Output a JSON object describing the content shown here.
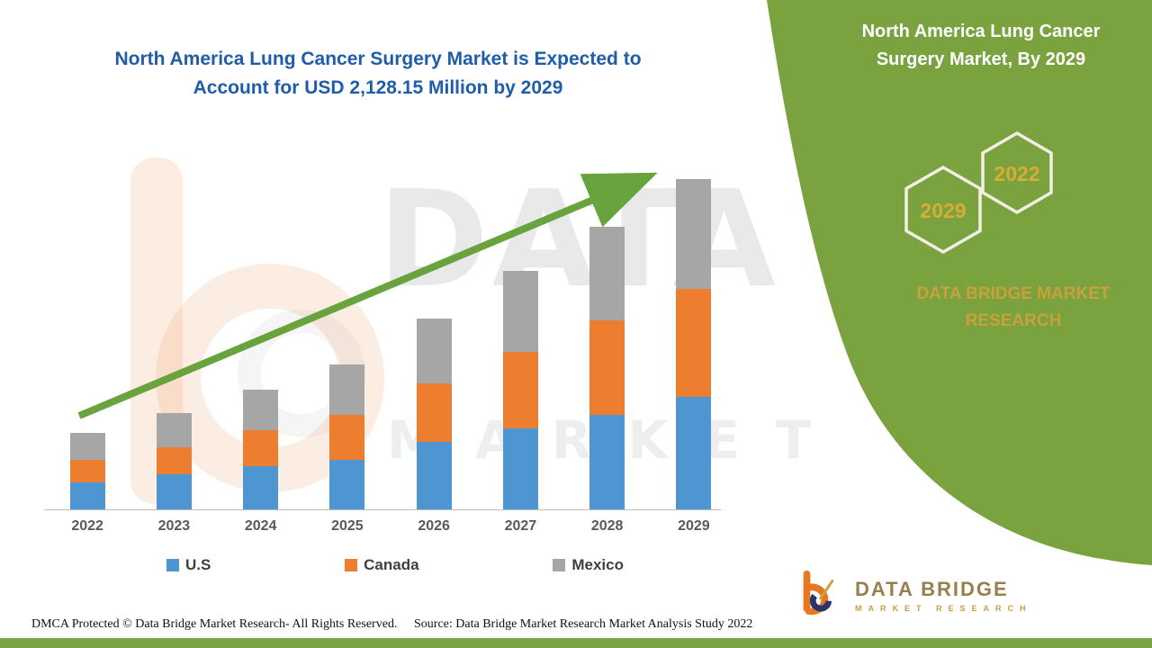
{
  "page": {
    "title_line1": "North America Lung Cancer Surgery Market is Expected to",
    "title_line2": "Account for USD 2,128.15 Million by 2029"
  },
  "side_panel": {
    "title_line1": "North America Lung Cancer",
    "title_line2": "Surgery Market, By 2029",
    "hexagon_left_label": "2029",
    "hexagon_right_label": "2022",
    "brand_line1": "DATA BRIDGE MARKET",
    "brand_line2": "RESEARCH"
  },
  "watermark": {
    "line1": "DATA BRIDGE",
    "line2": "MARKET RESEARCH"
  },
  "chart_data": {
    "type": "bar",
    "stacked": true,
    "title": "North America Lung Cancer Surgery Market is Expected to Account for USD 2,128.15 Million by 2029",
    "units": "USD Million",
    "categories": [
      "2022",
      "2023",
      "2024",
      "2025",
      "2026",
      "2027",
      "2028",
      "2029"
    ],
    "series": [
      {
        "name": "U.S",
        "color": "#4D96D2",
        "values": [
          175,
          228,
          278,
          320,
          435,
          523,
          610,
          726
        ]
      },
      {
        "name": "Canada",
        "color": "#EE7E2F",
        "values": [
          145,
          172,
          232,
          290,
          378,
          492,
          608,
          694
        ]
      },
      {
        "name": "Mexico",
        "color": "#A6A6A6",
        "values": [
          172,
          221,
          260,
          323,
          418,
          521,
          602,
          708.15
        ]
      }
    ],
    "totals": [
      492,
      621,
      770,
      933,
      1231,
      1536,
      1820,
      2128.15
    ],
    "highlight_total_2029": 2128.15,
    "xlabel": "",
    "ylabel": "",
    "ylim": [
      0,
      2400
    ],
    "gridlines": false,
    "y_axis_labels_visible": false,
    "legend_position": "bottom",
    "trend_arrow": true
  },
  "footer": {
    "dmca": "DMCA Protected © Data Bridge Market Research- All Rights Reserved.",
    "source": "Source: Data Bridge Market Research Market Analysis Study 2022"
  },
  "logo": {
    "name": "DATA BRIDGE",
    "subtitle": "MARKET RESEARCH"
  },
  "colors": {
    "panel_green": "#7AA23F",
    "arrow_green": "#68A33E",
    "title_blue": "#1F5CA9",
    "gold": "#C9A13B",
    "hex_gold": "#D8AC35"
  }
}
